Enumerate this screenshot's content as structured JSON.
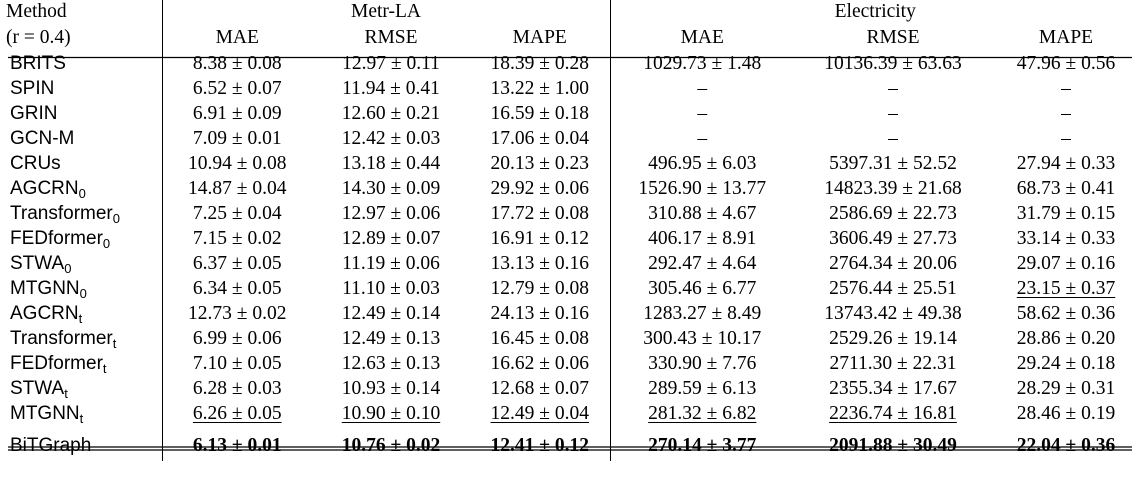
{
  "header": {
    "method": "Method",
    "ratio": "(r = 0.4)",
    "groups": [
      "Metr-LA",
      "Electricity"
    ],
    "metrics": [
      "MAE",
      "RMSE",
      "MAPE"
    ]
  },
  "rows": [
    {
      "method": "BRITS",
      "sub": "",
      "metr": [
        "8.38 ± 0.08",
        "12.97 ± 0.11",
        "18.39 ± 0.28"
      ],
      "elec": [
        "1029.73 ± 1.48",
        "10136.39 ± 63.63",
        "47.96 ± 0.56"
      ]
    },
    {
      "method": "SPIN",
      "sub": "",
      "metr": [
        "6.52 ± 0.07",
        "11.94 ± 0.41",
        "13.22 ± 1.00"
      ],
      "elec": [
        "–",
        "–",
        "–"
      ]
    },
    {
      "method": "GRIN",
      "sub": "",
      "metr": [
        "6.91 ± 0.09",
        "12.60 ± 0.21",
        "16.59 ± 0.18"
      ],
      "elec": [
        "–",
        "–",
        "–"
      ]
    },
    {
      "method": "GCN-M",
      "sub": "",
      "metr": [
        "7.09 ± 0.01",
        "12.42 ± 0.03",
        "17.06 ± 0.04"
      ],
      "elec": [
        "–",
        "–",
        "–"
      ]
    },
    {
      "method": "CRUs",
      "sub": "",
      "metr": [
        "10.94 ± 0.08",
        "13.18 ± 0.44",
        "20.13 ± 0.23"
      ],
      "elec": [
        "496.95 ± 6.03",
        "5397.31 ± 52.52",
        "27.94 ± 0.33"
      ]
    },
    {
      "method": "AGCRN",
      "sub": "0",
      "metr": [
        "14.87 ± 0.04",
        "14.30 ± 0.09",
        "29.92 ± 0.06"
      ],
      "elec": [
        "1526.90 ± 13.77",
        "14823.39 ± 21.68",
        "68.73 ± 0.41"
      ]
    },
    {
      "method": "Transformer",
      "sub": "0",
      "metr": [
        "7.25 ± 0.04",
        "12.97 ± 0.06",
        "17.72 ± 0.08"
      ],
      "elec": [
        "310.88 ± 4.67",
        "2586.69 ± 22.73",
        "31.79 ± 0.15"
      ]
    },
    {
      "method": "FEDformer",
      "sub": "0",
      "metr": [
        "7.15 ± 0.02",
        "12.89 ± 0.07",
        "16.91 ± 0.12"
      ],
      "elec": [
        "406.17 ± 8.91",
        "3606.49 ± 27.73",
        "33.14 ± 0.33"
      ]
    },
    {
      "method": "STWA",
      "sub": "0",
      "metr": [
        "6.37 ± 0.05",
        "11.19 ± 0.06",
        "13.13 ± 0.16"
      ],
      "elec": [
        "292.47 ± 4.64",
        "2764.34 ± 20.06",
        "29.07 ± 0.16"
      ]
    },
    {
      "method": "MTGNN",
      "sub": "0",
      "metr": [
        "6.34 ± 0.05",
        "11.10 ± 0.03",
        "12.79 ± 0.08"
      ],
      "elec": [
        "305.46 ± 6.77",
        "2576.44 ± 25.51",
        "23.15 ± 0.37"
      ]
    },
    {
      "method": "AGCRN",
      "sub": "t",
      "metr": [
        "12.73 ± 0.02",
        "12.49 ± 0.14",
        "24.13 ± 0.16"
      ],
      "elec": [
        "1283.27 ± 8.49",
        "13743.42 ± 49.38",
        "58.62 ± 0.36"
      ]
    },
    {
      "method": "Transformer",
      "sub": "t",
      "metr": [
        "6.99 ± 0.06",
        "12.49 ± 0.13",
        "16.45 ± 0.08"
      ],
      "elec": [
        "300.43 ± 10.17",
        "2529.26 ± 19.14",
        "28.86 ± 0.20"
      ]
    },
    {
      "method": "FEDformer",
      "sub": "t",
      "metr": [
        "7.10 ± 0.05",
        "12.63 ± 0.13",
        "16.62 ± 0.06"
      ],
      "elec": [
        "330.90 ± 7.76",
        "2711.30 ± 22.31",
        "29.24 ± 0.18"
      ]
    },
    {
      "method": "STWA",
      "sub": "t",
      "metr": [
        "6.28 ± 0.03",
        "10.93 ± 0.14",
        "12.68 ± 0.07"
      ],
      "elec": [
        "289.59 ± 6.13",
        "2355.34 ± 17.67",
        "28.29 ± 0.31"
      ]
    },
    {
      "method": "MTGNN",
      "sub": "t",
      "metr": [
        "6.26 ± 0.05",
        "10.90 ± 0.10",
        "12.49 ± 0.04"
      ],
      "elec": [
        "281.32 ± 6.82",
        "2236.74 ± 16.81",
        "28.46 ± 0.19"
      ]
    }
  ],
  "final": {
    "method": "BiTGraph",
    "metr": [
      "6.13 ± 0.01",
      "10.76 ± 0.02",
      "12.41 ± 0.12"
    ],
    "elec": [
      "270.14 ± 3.77",
      "2091.88 ± 30.49",
      "22.04 ± 0.36"
    ]
  }
}
